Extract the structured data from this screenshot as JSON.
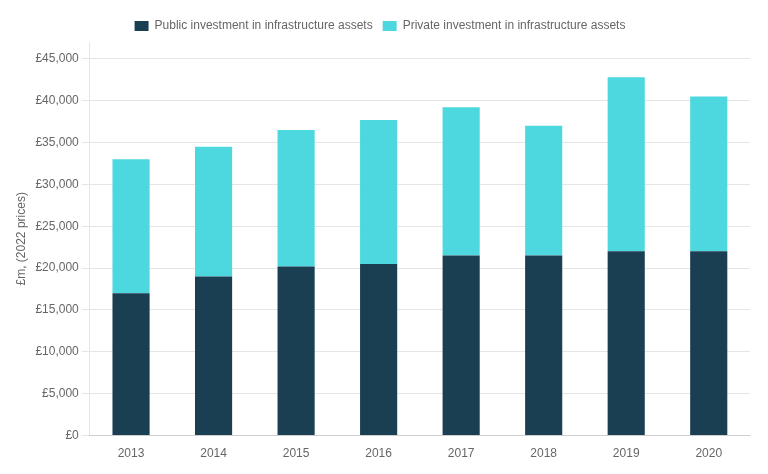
{
  "chart_data": {
    "type": "bar",
    "stacked": true,
    "categories": [
      "2013",
      "2014",
      "2015",
      "2016",
      "2017",
      "2018",
      "2019",
      "2020"
    ],
    "series": [
      {
        "name": "Public investment in infrastructure assets",
        "color": "#1b3f52",
        "values": [
          17000,
          19000,
          20200,
          20500,
          21500,
          21500,
          22000,
          22000
        ]
      },
      {
        "name": "Private investment in infrastructure assets",
        "color": "#4dd8e0",
        "values": [
          16000,
          15500,
          16300,
          17200,
          17700,
          15500,
          20800,
          18500
        ]
      }
    ],
    "ylabel": "£m, (2022 prices)",
    "ylim": [
      0,
      47000
    ],
    "yticks": [
      {
        "value": 0,
        "label": "£0"
      },
      {
        "value": 5000,
        "label": "£5,000"
      },
      {
        "value": 10000,
        "label": "£10,000"
      },
      {
        "value": 15000,
        "label": "£15,000"
      },
      {
        "value": 20000,
        "label": "£20,000"
      },
      {
        "value": 25000,
        "label": "£25,000"
      },
      {
        "value": 30000,
        "label": "£30,000"
      },
      {
        "value": 35000,
        "label": "£35,000"
      },
      {
        "value": 40000,
        "label": "£40,000"
      },
      {
        "value": 45000,
        "label": "£45,000"
      }
    ],
    "grid": true,
    "legend": "top"
  }
}
